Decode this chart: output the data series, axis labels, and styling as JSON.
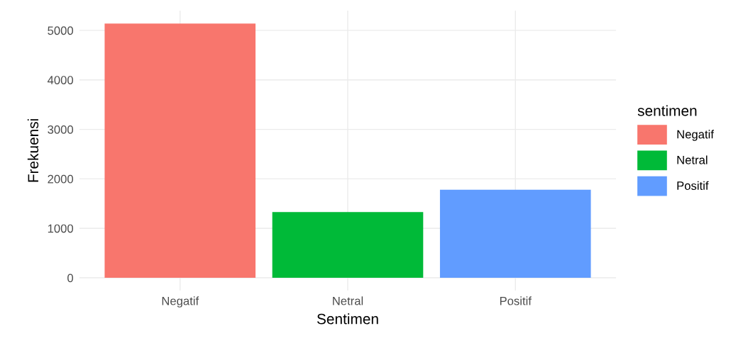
{
  "chart_data": {
    "type": "bar",
    "xlabel": "Sentimen",
    "ylabel": "Frekuensi",
    "legend_title": "sentimen",
    "categories": [
      "Negatif",
      "Netral",
      "Positif"
    ],
    "series": [
      {
        "name": "Negatif",
        "color": "#f8766d",
        "values": [
          5140,
          null,
          null
        ]
      },
      {
        "name": "Netral",
        "color": "#00ba38",
        "values": [
          null,
          1330,
          null
        ]
      },
      {
        "name": "Positif",
        "color": "#619cff",
        "values": [
          null,
          null,
          1780
        ]
      }
    ],
    "ylim": [
      -257,
      5400
    ],
    "yticks": [
      0,
      1000,
      2000,
      3000,
      4000,
      5000
    ],
    "grid": true,
    "legend": "right"
  }
}
